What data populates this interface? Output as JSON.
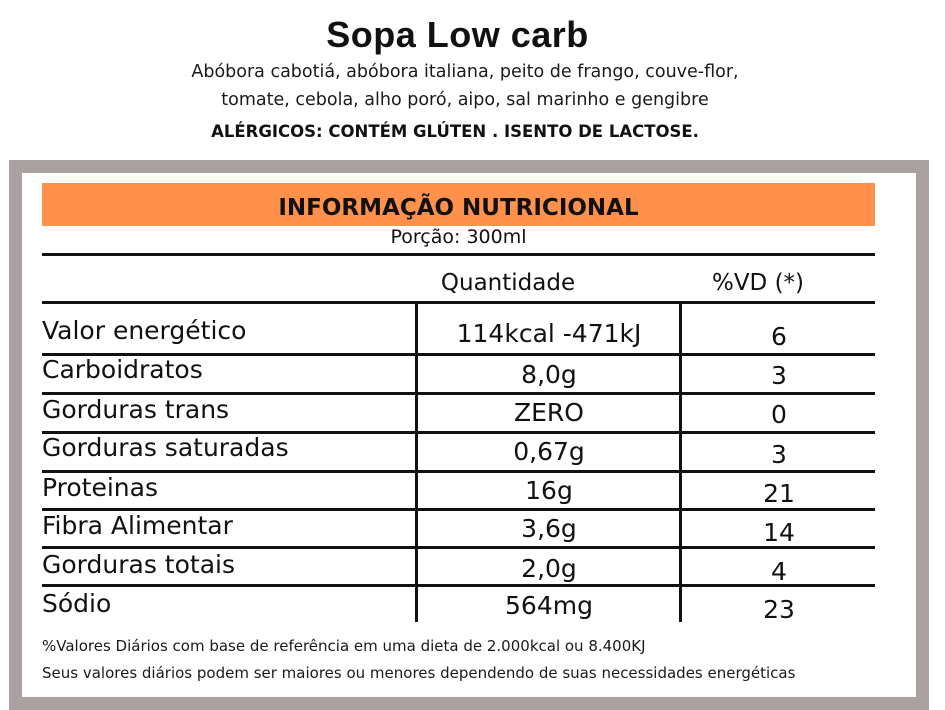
{
  "product": {
    "title": "Sopa Low carb",
    "ingredients_line1": "Abóbora cabotiá, abóbora italiana, peito de frango, couve-flor,",
    "ingredients_line2": "tomate, cebola, alho poró, aipo, sal marinho e gengibre",
    "allergens": "ALÉRGICOS: CONTÉM GLÚTEN . ISENTO DE LACTOSE."
  },
  "label": {
    "header": "INFORMAÇÃO NUTRICIONAL",
    "portion": "Porção: 300ml",
    "col_quantity": "Quantidade",
    "col_vd": "%VD (*)",
    "rows": [
      {
        "name": "Valor energético",
        "quantity": "114kcal -471kJ",
        "vd": "6"
      },
      {
        "name": "Carboidratos",
        "quantity": "8,0g",
        "vd": "3"
      },
      {
        "name": "Gorduras trans",
        "quantity": "ZERO",
        "vd": "0"
      },
      {
        "name": "Gorduras saturadas",
        "quantity": "0,67g",
        "vd": "3"
      },
      {
        "name": "Proteinas",
        "quantity": "16g",
        "vd": "21"
      },
      {
        "name": "Fibra Alimentar",
        "quantity": "3,6g",
        "vd": "14"
      },
      {
        "name": "Gorduras totais",
        "quantity": "2,0g",
        "vd": "4"
      },
      {
        "name": "Sódio",
        "quantity": "564mg",
        "vd": "23"
      }
    ],
    "footnote1": "%Valores Diários com base de referência em uma dieta de 2.000kcal ou 8.400KJ",
    "footnote2": "Seus valores diários podem ser maiores ou menores dependendo de suas necessidades energéticas"
  },
  "colors": {
    "header_band": "#ff914d",
    "frame": "#aaa2a0"
  }
}
